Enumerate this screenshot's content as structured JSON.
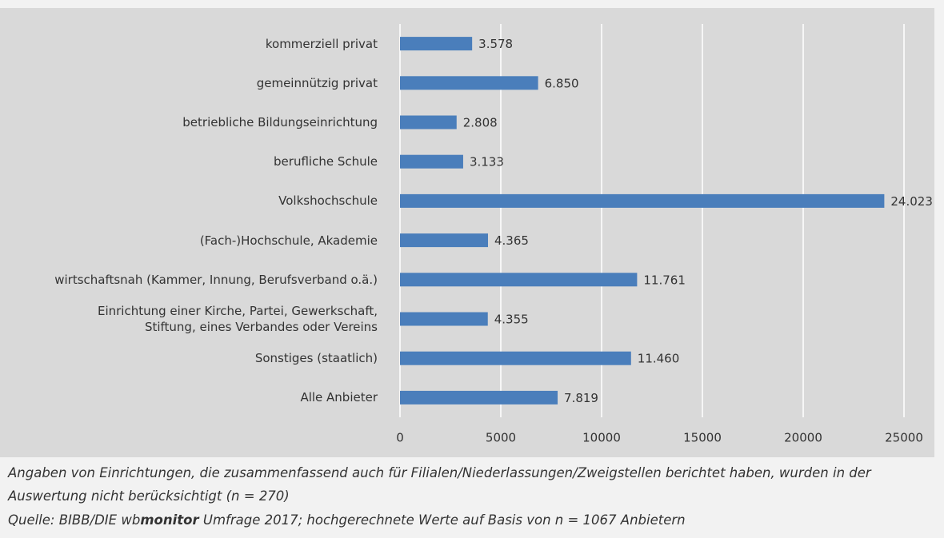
{
  "chart_data": {
    "type": "barh",
    "categories": [
      "kommerziell privat",
      "gemeinnützig privat",
      "betriebliche Bildungseinrichtung",
      "berufliche Schule",
      "Volkshochschule",
      "(Fach-)Hochschule,  Akademie",
      "wirtschaftsnah (Kammer, Innung, Berufsverband o.ä.)",
      "Einrichtung einer Kirche, Partei, Gewerkschaft,\nStiftung, eines Verbandes oder Vereins",
      "Sonstiges (staatlich)",
      "Alle Anbieter"
    ],
    "values": [
      3578,
      6850,
      2808,
      3133,
      24023,
      4365,
      11761,
      4355,
      11460,
      7819
    ],
    "value_labels": [
      "3.578",
      "6.850",
      "2.808",
      "3.133",
      "24.023",
      "4.365",
      "11.761",
      "4.355",
      "11.460",
      "7.819"
    ],
    "color": "#4a7ebb",
    "xlim": [
      0,
      25000
    ],
    "xticks": [
      0,
      5000,
      10000,
      15000,
      20000,
      25000
    ],
    "grid": true
  },
  "notes": {
    "footnote": "Angaben von Einrichtungen, die zusammenfassend auch für Filialen/Niederlassungen/Zweigstellen berichtet haben, wurden in der Auswertung nicht berücksichtigt (n = 270)",
    "source_prefix": "Quelle: BIBB/DIE wb",
    "source_bold": "monitor",
    "source_suffix": " Umfrage 2017; hochgerechnete Werte auf Basis von n = 1067 Anbietern"
  }
}
